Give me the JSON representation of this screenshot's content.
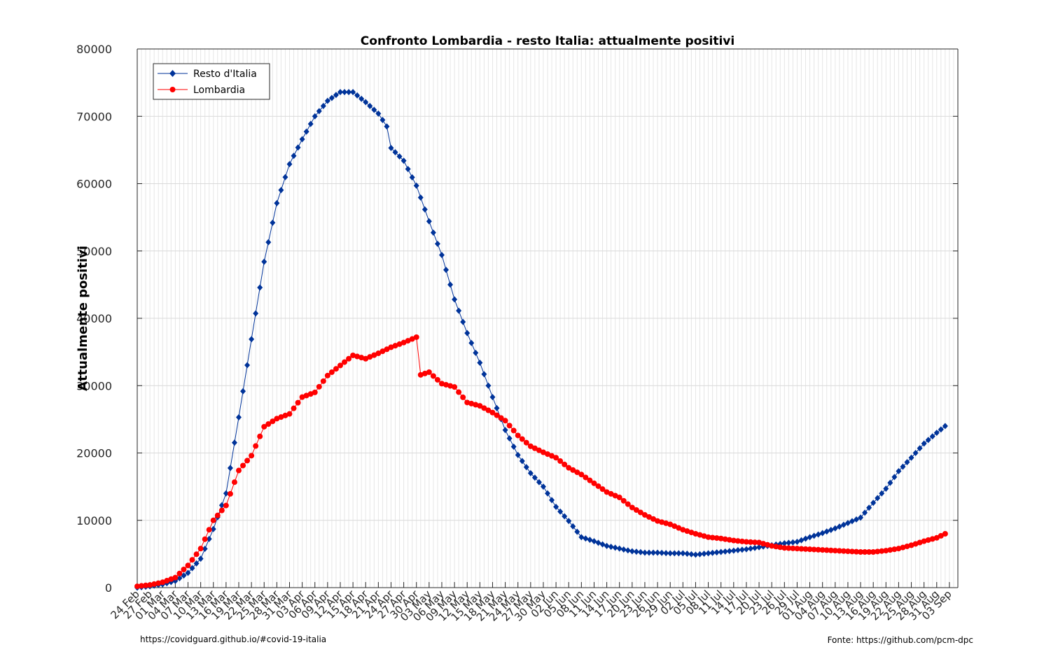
{
  "chart_data": {
    "type": "line",
    "title": "Confronto Lombardia - resto Italia: attualmente positivi",
    "xlabel": "",
    "ylabel": "Attualmente positivi",
    "ylim": [
      0,
      80000
    ],
    "yticks": [
      0,
      10000,
      20000,
      30000,
      40000,
      50000,
      60000,
      70000,
      80000
    ],
    "x_start": "2020-02-24",
    "x_end": "2020-09-05",
    "xtick_labels": [
      "24 Feb",
      "27 Feb",
      "01 Mar",
      "04 Mar",
      "07 Mar",
      "10 Mar",
      "13 Mar",
      "16 Mar",
      "19 Mar",
      "22 Mar",
      "25 Mar",
      "28 Mar",
      "31 Mar",
      "03 Apr",
      "06 Apr",
      "09 Apr",
      "12 Apr",
      "15 Apr",
      "18 Apr",
      "21 Apr",
      "24 Apr",
      "27 Apr",
      "30 Apr",
      "03 May",
      "06 May",
      "09 May",
      "12 May",
      "15 May",
      "18 May",
      "21 May",
      "24 May",
      "27 May",
      "30 May",
      "02 Jun",
      "05 Jun",
      "08 Jun",
      "11 Jun",
      "14 Jun",
      "17 Jun",
      "20 Jun",
      "23 Jun",
      "26 Jun",
      "29 Jun",
      "02 Jul",
      "05 Jul",
      "08 Jul",
      "11 Jul",
      "14 Jul",
      "17 Jul",
      "20 Jul",
      "23 Jul",
      "26 Jul",
      "29 Jul",
      "01 Aug",
      "04 Aug",
      "07 Aug",
      "10 Aug",
      "13 Aug",
      "16 Aug",
      "19 Aug",
      "22 Aug",
      "25 Aug",
      "28 Aug",
      "31 Aug",
      "03 Sep"
    ],
    "grid": true,
    "legend_position": "top-left",
    "series": [
      {
        "name": "Resto d'Italia",
        "color": "#003399",
        "marker": "diamond",
        "anchors": [
          [
            "2020-02-24",
            0
          ],
          [
            "2020-02-27",
            200
          ],
          [
            "2020-03-01",
            500
          ],
          [
            "2020-03-04",
            1000
          ],
          [
            "2020-03-07",
            2200
          ],
          [
            "2020-03-10",
            4300
          ],
          [
            "2020-03-13",
            8700
          ],
          [
            "2020-03-16",
            14000
          ],
          [
            "2020-03-19",
            25300
          ],
          [
            "2020-03-22",
            36900
          ],
          [
            "2020-03-25",
            48400
          ],
          [
            "2020-03-28",
            57100
          ],
          [
            "2020-03-31",
            62900
          ],
          [
            "2020-04-03",
            66600
          ],
          [
            "2020-04-06",
            70000
          ],
          [
            "2020-04-09",
            72300
          ],
          [
            "2020-04-12",
            73600
          ],
          [
            "2020-04-15",
            73600
          ],
          [
            "2020-04-18",
            72100
          ],
          [
            "2020-04-21",
            70400
          ],
          [
            "2020-04-23",
            68500
          ],
          [
            "2020-04-24",
            65300
          ],
          [
            "2020-04-27",
            63400
          ],
          [
            "2020-04-30",
            59700
          ],
          [
            "2020-05-03",
            54400
          ],
          [
            "2020-05-06",
            49400
          ],
          [
            "2020-05-09",
            42800
          ],
          [
            "2020-05-12",
            37800
          ],
          [
            "2020-05-15",
            33400
          ],
          [
            "2020-05-18",
            28300
          ],
          [
            "2020-05-21",
            23400
          ],
          [
            "2020-05-24",
            19700
          ],
          [
            "2020-05-27",
            17000
          ],
          [
            "2020-05-30",
            15000
          ],
          [
            "2020-06-02",
            12000
          ],
          [
            "2020-06-05",
            9900
          ],
          [
            "2020-06-08",
            7500
          ],
          [
            "2020-06-11",
            6900
          ],
          [
            "2020-06-14",
            6200
          ],
          [
            "2020-06-17",
            5800
          ],
          [
            "2020-06-20",
            5400
          ],
          [
            "2020-06-23",
            5200
          ],
          [
            "2020-06-26",
            5200
          ],
          [
            "2020-06-29",
            5100
          ],
          [
            "2020-07-02",
            5100
          ],
          [
            "2020-07-05",
            4900
          ],
          [
            "2020-07-08",
            5100
          ],
          [
            "2020-07-11",
            5300
          ],
          [
            "2020-07-14",
            5500
          ],
          [
            "2020-07-17",
            5700
          ],
          [
            "2020-07-20",
            6000
          ],
          [
            "2020-07-23",
            6300
          ],
          [
            "2020-07-26",
            6600
          ],
          [
            "2020-07-29",
            6800
          ],
          [
            "2020-08-01",
            7500
          ],
          [
            "2020-08-04",
            8100
          ],
          [
            "2020-08-07",
            8800
          ],
          [
            "2020-08-10",
            9600
          ],
          [
            "2020-08-13",
            10400
          ],
          [
            "2020-08-16",
            12600
          ],
          [
            "2020-08-19",
            14700
          ],
          [
            "2020-08-22",
            17300
          ],
          [
            "2020-08-25",
            19300
          ],
          [
            "2020-08-28",
            21400
          ],
          [
            "2020-08-31",
            23000
          ],
          [
            "2020-09-02",
            24000
          ]
        ]
      },
      {
        "name": "Lombardia",
        "color": "#ff0000",
        "marker": "circle",
        "anchors": [
          [
            "2020-02-24",
            200
          ],
          [
            "2020-02-27",
            400
          ],
          [
            "2020-03-01",
            800
          ],
          [
            "2020-03-04",
            1500
          ],
          [
            "2020-03-07",
            3300
          ],
          [
            "2020-03-10",
            5800
          ],
          [
            "2020-03-13",
            10000
          ],
          [
            "2020-03-16",
            12200
          ],
          [
            "2020-03-19",
            17400
          ],
          [
            "2020-03-22",
            19600
          ],
          [
            "2020-03-25",
            23900
          ],
          [
            "2020-03-28",
            25100
          ],
          [
            "2020-03-31",
            25800
          ],
          [
            "2020-04-03",
            28300
          ],
          [
            "2020-04-06",
            29000
          ],
          [
            "2020-04-09",
            31500
          ],
          [
            "2020-04-12",
            33000
          ],
          [
            "2020-04-15",
            34500
          ],
          [
            "2020-04-18",
            34000
          ],
          [
            "2020-04-21",
            34800
          ],
          [
            "2020-04-24",
            35700
          ],
          [
            "2020-04-27",
            36400
          ],
          [
            "2020-04-30",
            37200
          ],
          [
            "2020-05-01",
            31600
          ],
          [
            "2020-05-03",
            32000
          ],
          [
            "2020-05-06",
            30300
          ],
          [
            "2020-05-09",
            29800
          ],
          [
            "2020-05-12",
            27500
          ],
          [
            "2020-05-15",
            27000
          ],
          [
            "2020-05-18",
            26000
          ],
          [
            "2020-05-21",
            24800
          ],
          [
            "2020-05-24",
            22600
          ],
          [
            "2020-05-27",
            21000
          ],
          [
            "2020-05-30",
            20100
          ],
          [
            "2020-06-02",
            19300
          ],
          [
            "2020-06-05",
            17800
          ],
          [
            "2020-06-08",
            16800
          ],
          [
            "2020-06-11",
            15500
          ],
          [
            "2020-06-14",
            14200
          ],
          [
            "2020-06-17",
            13400
          ],
          [
            "2020-06-20",
            11900
          ],
          [
            "2020-06-23",
            10800
          ],
          [
            "2020-06-26",
            9900
          ],
          [
            "2020-06-29",
            9400
          ],
          [
            "2020-07-02",
            8600
          ],
          [
            "2020-07-05",
            8000
          ],
          [
            "2020-07-08",
            7500
          ],
          [
            "2020-07-11",
            7300
          ],
          [
            "2020-07-14",
            7000
          ],
          [
            "2020-07-17",
            6800
          ],
          [
            "2020-07-20",
            6700
          ],
          [
            "2020-07-23",
            6200
          ],
          [
            "2020-07-26",
            5900
          ],
          [
            "2020-07-29",
            5800
          ],
          [
            "2020-08-01",
            5700
          ],
          [
            "2020-08-04",
            5600
          ],
          [
            "2020-08-07",
            5500
          ],
          [
            "2020-08-10",
            5400
          ],
          [
            "2020-08-13",
            5300
          ],
          [
            "2020-08-16",
            5300
          ],
          [
            "2020-08-19",
            5500
          ],
          [
            "2020-08-22",
            5800
          ],
          [
            "2020-08-25",
            6300
          ],
          [
            "2020-08-28",
            6900
          ],
          [
            "2020-08-31",
            7400
          ],
          [
            "2020-09-02",
            8000
          ]
        ]
      }
    ]
  },
  "footer": {
    "left": "https://covidguard.github.io/#covid-19-italia",
    "right": "Fonte: https://github.com/pcm-dpc"
  }
}
